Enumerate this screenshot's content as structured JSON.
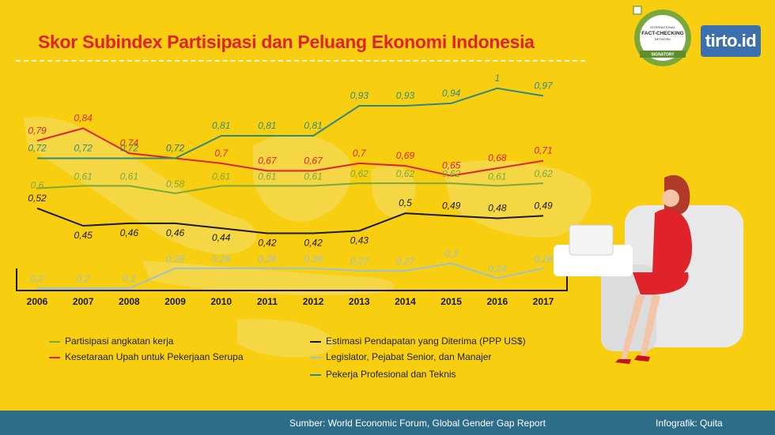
{
  "title": "Skor Subindex Partisipasi dan Peluang Ekonomi Indonesia",
  "brand": "tirto.id",
  "badge": {
    "line1": "INTERNATIONAL",
    "line2": "FACT-CHECKING",
    "line3": "NETWORK",
    "line4": "SIGNATORY"
  },
  "footer": {
    "source": "Sumber: World Economic Forum, Global Gender Gap Report",
    "credit": "Infografik: Quita"
  },
  "colors": {
    "background": "#f8cf10",
    "title": "#e0222a",
    "footer": "#2d6d8a"
  },
  "chart_data": {
    "type": "line",
    "title": "Skor Subindex Partisipasi dan Peluang Ekonomi Indonesia",
    "xlabel": "",
    "ylabel": "",
    "x": [
      "2006",
      "2007",
      "2008",
      "2009",
      "2010",
      "2011",
      "2012",
      "2013",
      "2014",
      "2015",
      "2016",
      "2017"
    ],
    "ylim": [
      0.15,
      1.05
    ],
    "grid": false,
    "legend": "bottom",
    "series": [
      {
        "name": "Partisipasi angkatan kerja",
        "color": "#7aa83c",
        "values": [
          0.6,
          0.61,
          0.61,
          0.58,
          0.61,
          0.61,
          0.61,
          0.62,
          0.62,
          0.62,
          0.61,
          0.62
        ],
        "labels": [
          "0,6",
          "0,61",
          "0,61",
          "0,58",
          "0,61",
          "0,61",
          "0,61",
          "0,62",
          "0,62",
          "0,62",
          "0,61",
          "0,62"
        ]
      },
      {
        "name": "Kesetaraan Upah untuk Pekerjaan Serupa",
        "color": "#e0222a",
        "values": [
          0.79,
          0.84,
          0.74,
          0.72,
          0.7,
          0.67,
          0.67,
          0.7,
          0.69,
          0.65,
          0.68,
          0.71
        ],
        "labels": [
          "0,79",
          "0,84",
          "0,74",
          "0,72",
          "0,7",
          "0,67",
          "0,67",
          "0,7",
          "0,69",
          "0,65",
          "0,68",
          "0,71"
        ]
      },
      {
        "name": "Estimasi Pendapatan yang Diterima (PPP US$)",
        "color": "#1a1a1a",
        "values": [
          0.52,
          0.45,
          0.46,
          0.46,
          0.44,
          0.42,
          0.42,
          0.43,
          0.5,
          0.49,
          0.48,
          0.49
        ],
        "labels": [
          "0,52",
          "0,45",
          "0,46",
          "0,46",
          "0,44",
          "0,42",
          "0,42",
          "0,43",
          "0,5",
          "0,49",
          "0,48",
          "0,49"
        ]
      },
      {
        "name": "Legislator, Pejabat Senior, dan Manajer",
        "color": "#9cc0d4",
        "values": [
          0.2,
          0.2,
          0.2,
          0.28,
          0.28,
          0.28,
          0.28,
          0.27,
          0.27,
          0.3,
          0.24,
          0.28
        ],
        "labels": [
          "0,2",
          "0,2",
          "0,2",
          "0,28",
          "0,28",
          "0,28",
          "0,28",
          "0,27",
          "0,27",
          "0,3",
          "0,24",
          "0,28"
        ]
      },
      {
        "name": "Pekerja Profesional dan Teknis",
        "color": "#2f8a7e",
        "values": [
          0.72,
          0.72,
          0.72,
          0.72,
          0.81,
          0.81,
          0.81,
          0.93,
          0.93,
          0.94,
          1,
          0.97
        ],
        "labels": [
          "0,72",
          "0,72",
          "0,72",
          "0,72",
          "0,81",
          "0,81",
          "0,81",
          "0,93",
          "0,93",
          "0,94",
          "1",
          "0,97"
        ]
      }
    ]
  }
}
